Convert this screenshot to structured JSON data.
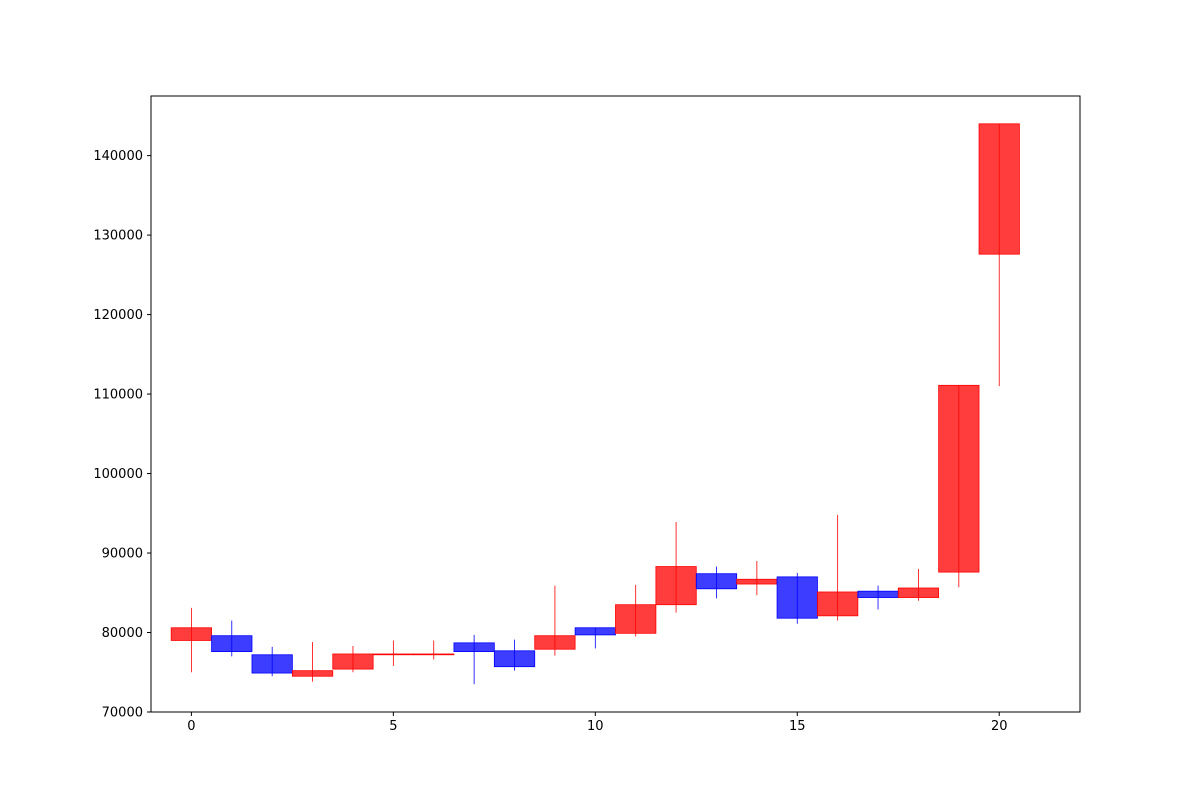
{
  "chart_data": {
    "type": "candlestick",
    "title": "",
    "xlabel": "",
    "ylabel": "",
    "xlim": [
      -1,
      22
    ],
    "ylim": [
      70000,
      147500
    ],
    "x_ticks": [
      0,
      5,
      10,
      15,
      20
    ],
    "x_tick_labels": [
      "0",
      "5",
      "10",
      "15",
      "20"
    ],
    "y_ticks": [
      70000,
      80000,
      90000,
      100000,
      110000,
      120000,
      130000,
      140000
    ],
    "y_tick_labels": [
      "70000",
      "80000",
      "90000",
      "100000",
      "110000",
      "120000",
      "130000",
      "140000"
    ],
    "grid": false,
    "legend": "none",
    "colors": {
      "up": "#ff0000",
      "down": "#0000ff"
    },
    "candles": [
      {
        "x": 0,
        "open": 79000,
        "close": 80600,
        "high": 83100,
        "low": 75000
      },
      {
        "x": 1,
        "open": 79600,
        "close": 77600,
        "high": 81500,
        "low": 77000
      },
      {
        "x": 2,
        "open": 77200,
        "close": 74900,
        "high": 78200,
        "low": 74500
      },
      {
        "x": 3,
        "open": 74500,
        "close": 75200,
        "high": 78800,
        "low": 73800
      },
      {
        "x": 4,
        "open": 75400,
        "close": 77300,
        "high": 78300,
        "low": 75000
      },
      {
        "x": 5,
        "open": 77300,
        "close": 77300,
        "high": 79000,
        "low": 75800
      },
      {
        "x": 6,
        "open": 77300,
        "close": 77300,
        "high": 79000,
        "low": 76600
      },
      {
        "x": 7,
        "open": 78700,
        "close": 77600,
        "high": 79700,
        "low": 73500
      },
      {
        "x": 8,
        "open": 77700,
        "close": 75700,
        "high": 79100,
        "low": 75200
      },
      {
        "x": 9,
        "open": 77900,
        "close": 79600,
        "high": 85900,
        "low": 77100
      },
      {
        "x": 10,
        "open": 80600,
        "close": 79700,
        "high": 80600,
        "low": 78000
      },
      {
        "x": 11,
        "open": 79900,
        "close": 83500,
        "high": 86000,
        "low": 79500
      },
      {
        "x": 12,
        "open": 83500,
        "close": 88300,
        "high": 93900,
        "low": 82500
      },
      {
        "x": 13,
        "open": 87400,
        "close": 85500,
        "high": 88300,
        "low": 84300
      },
      {
        "x": 14,
        "open": 86100,
        "close": 86700,
        "high": 89000,
        "low": 84700
      },
      {
        "x": 15,
        "open": 87000,
        "close": 81800,
        "high": 87500,
        "low": 81100
      },
      {
        "x": 16,
        "open": 82100,
        "close": 85100,
        "high": 94800,
        "low": 81500
      },
      {
        "x": 17,
        "open": 85200,
        "close": 84400,
        "high": 85900,
        "low": 82900
      },
      {
        "x": 18,
        "open": 84400,
        "close": 85600,
        "high": 88000,
        "low": 84000
      },
      {
        "x": 19,
        "open": 87600,
        "close": 111100,
        "high": 111100,
        "low": 85700
      },
      {
        "x": 20,
        "open": 127600,
        "close": 144000,
        "high": 144000,
        "low": 111000
      }
    ]
  }
}
